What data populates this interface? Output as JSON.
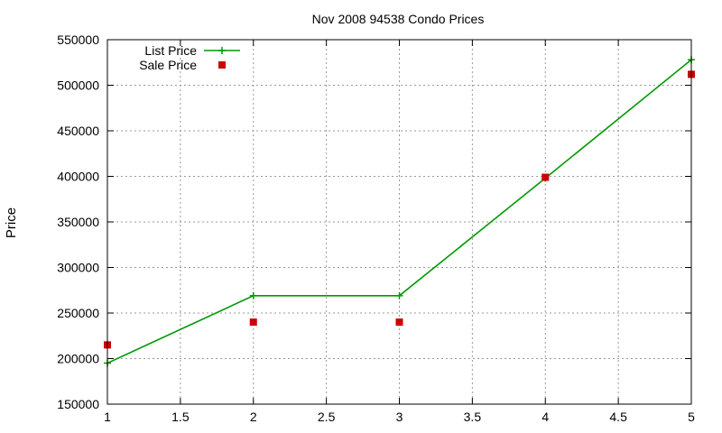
{
  "chart_data": {
    "type": "line",
    "title": "Nov 2008 94538 Condo Prices",
    "xlabel": "",
    "ylabel": "Price",
    "xlim": [
      1,
      5
    ],
    "ylim": [
      150000,
      550000
    ],
    "xticks": [
      1,
      1.5,
      2,
      2.5,
      3,
      3.5,
      4,
      4.5,
      5
    ],
    "xtick_labels": [
      "1",
      "1.5",
      "2",
      "2.5",
      "3",
      "3.5",
      "4",
      "4.5",
      "5"
    ],
    "yticks": [
      150000,
      200000,
      250000,
      300000,
      350000,
      400000,
      450000,
      500000,
      550000
    ],
    "ytick_labels": [
      "150000",
      "200000",
      "250000",
      "300000",
      "350000",
      "400000",
      "450000",
      "500000",
      "550000"
    ],
    "grid": true,
    "legend_position": "top-left",
    "series": [
      {
        "name": "List Price",
        "style": "line-with-plus-markers",
        "color": "#009900",
        "x": [
          1,
          2,
          3,
          4,
          5
        ],
        "y": [
          195000,
          269000,
          269000,
          398000,
          528000
        ]
      },
      {
        "name": "Sale Price",
        "style": "square-markers",
        "color": "#cc0000",
        "x": [
          1,
          2,
          3,
          4,
          5
        ],
        "y": [
          215000,
          240000,
          240000,
          399000,
          512000
        ]
      }
    ]
  }
}
